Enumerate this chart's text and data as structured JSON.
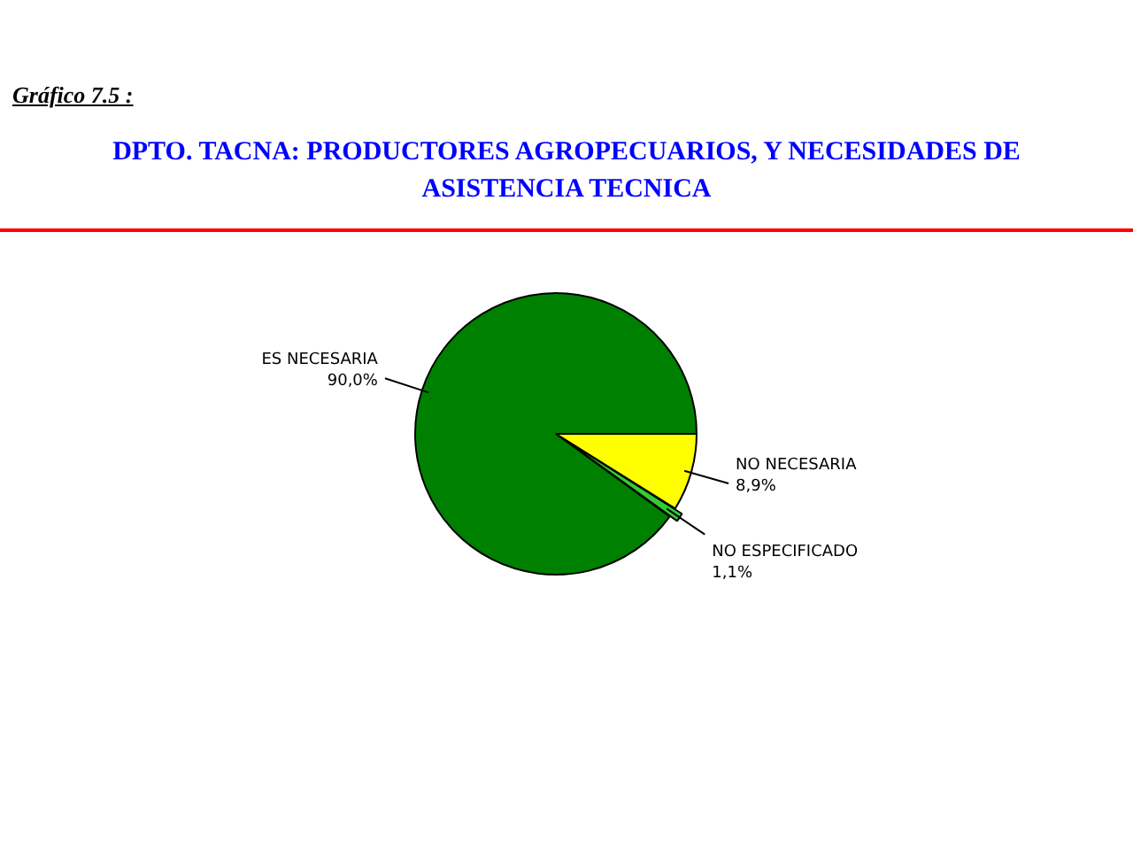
{
  "chart_data": {
    "type": "pie",
    "title": "DPTO. TACNA: PRODUCTORES AGROPECUARIOS, Y NECESIDADES DE ASISTENCIA TECNICA",
    "annotations": [
      "Gráfico 7.5 :"
    ],
    "categories": [
      "NO NECESARIA",
      "NO ESPECIFICADO",
      "ES NECESARIA"
    ],
    "values": [
      8.9,
      1.1,
      90.0
    ],
    "value_labels": [
      "8,9%",
      "1,1%",
      "90,0%"
    ],
    "colors": [
      "#ffff00",
      "#33cc33",
      "#008000"
    ],
    "legend": false
  }
}
